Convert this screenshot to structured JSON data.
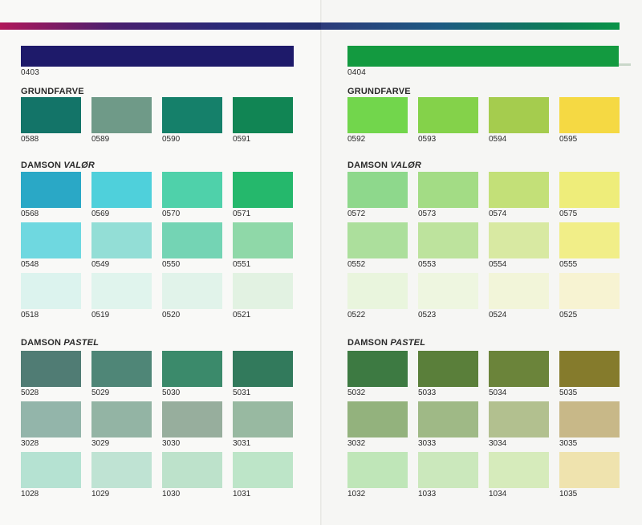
{
  "left_page": {
    "section_code": "0403",
    "accent": "#1e1a6a",
    "groups": [
      {
        "title": "GRUNDFARVE",
        "title_italic": "",
        "swatches": [
          {
            "code": "0588",
            "color": "#137468"
          },
          {
            "code": "0589",
            "color": "#6f9a88"
          },
          {
            "code": "0590",
            "color": "#15806a"
          },
          {
            "code": "0591",
            "color": "#118554"
          }
        ]
      },
      {
        "title": "DAMSON ",
        "title_italic": "VALØR",
        "swatches": [
          {
            "code": "0568",
            "color": "#2aa8c6"
          },
          {
            "code": "0569",
            "color": "#4fd0db"
          },
          {
            "code": "0570",
            "color": "#4fd1aa"
          },
          {
            "code": "0571",
            "color": "#25b86c"
          },
          {
            "code": "0548",
            "color": "#6fd8e0"
          },
          {
            "code": "0549",
            "color": "#93ded6"
          },
          {
            "code": "0550",
            "color": "#74d4b4"
          },
          {
            "code": "0551",
            "color": "#8fd8a8"
          },
          {
            "code": "0518",
            "color": "#dcf3ee"
          },
          {
            "code": "0519",
            "color": "#e0f4ed"
          },
          {
            "code": "0520",
            "color": "#e1f3ea"
          },
          {
            "code": "0521",
            "color": "#e2f2e2"
          }
        ]
      },
      {
        "title": "DAMSON ",
        "title_italic": "PASTEL",
        "swatches": [
          {
            "code": "5028",
            "color": "#507c74"
          },
          {
            "code": "5029",
            "color": "#4f8677"
          },
          {
            "code": "5030",
            "color": "#3b8a6b"
          },
          {
            "code": "5031",
            "color": "#327a5c"
          },
          {
            "code": "3028",
            "color": "#93b5aa"
          },
          {
            "code": "3029",
            "color": "#93b4a4"
          },
          {
            "code": "3030",
            "color": "#97ae9d"
          },
          {
            "code": "3031",
            "color": "#98b9a1"
          },
          {
            "code": "1028",
            "color": "#b5e2d2"
          },
          {
            "code": "1029",
            "color": "#bfe3d3"
          },
          {
            "code": "1030",
            "color": "#bde2cb"
          },
          {
            "code": "1031",
            "color": "#bde5c8"
          }
        ]
      }
    ]
  },
  "right_page": {
    "section_code": "0404",
    "accent": "#139a40",
    "groups": [
      {
        "title": "GRUNDFARVE",
        "title_italic": "",
        "swatches": [
          {
            "code": "0592",
            "color": "#72d64c"
          },
          {
            "code": "0593",
            "color": "#84d24a"
          },
          {
            "code": "0594",
            "color": "#a5cc4e"
          },
          {
            "code": "0595",
            "color": "#f5d943"
          }
        ]
      },
      {
        "title": "DAMSON ",
        "title_italic": "VALØR",
        "swatches": [
          {
            "code": "0572",
            "color": "#8ed88c"
          },
          {
            "code": "0573",
            "color": "#a3dc85"
          },
          {
            "code": "0574",
            "color": "#c3e078"
          },
          {
            "code": "0575",
            "color": "#eeed7a"
          },
          {
            "code": "0552",
            "color": "#acdf9c"
          },
          {
            "code": "0553",
            "color": "#bde39d"
          },
          {
            "code": "0554",
            "color": "#d8e9a2"
          },
          {
            "code": "0555",
            "color": "#f1ee88"
          },
          {
            "code": "0522",
            "color": "#e9f5dd"
          },
          {
            "code": "0523",
            "color": "#eef6e0"
          },
          {
            "code": "0524",
            "color": "#f2f5d9"
          },
          {
            "code": "0525",
            "color": "#f7f3d2"
          }
        ]
      },
      {
        "title": "DAMSON ",
        "title_italic": "PASTEL",
        "swatches": [
          {
            "code": "5032",
            "color": "#3d7a42"
          },
          {
            "code": "5033",
            "color": "#5a7f3a"
          },
          {
            "code": "5034",
            "color": "#6b843a"
          },
          {
            "code": "5035",
            "color": "#857b2c"
          },
          {
            "code": "3032",
            "color": "#93b27d"
          },
          {
            "code": "3033",
            "color": "#9fb986"
          },
          {
            "code": "3034",
            "color": "#b2c08f"
          },
          {
            "code": "3035",
            "color": "#c8b888"
          },
          {
            "code": "1032",
            "color": "#bfe6b8"
          },
          {
            "code": "1033",
            "color": "#cbe8bc"
          },
          {
            "code": "1034",
            "color": "#d6ebbb"
          },
          {
            "code": "1035",
            "color": "#efe3ae"
          }
        ]
      }
    ]
  }
}
